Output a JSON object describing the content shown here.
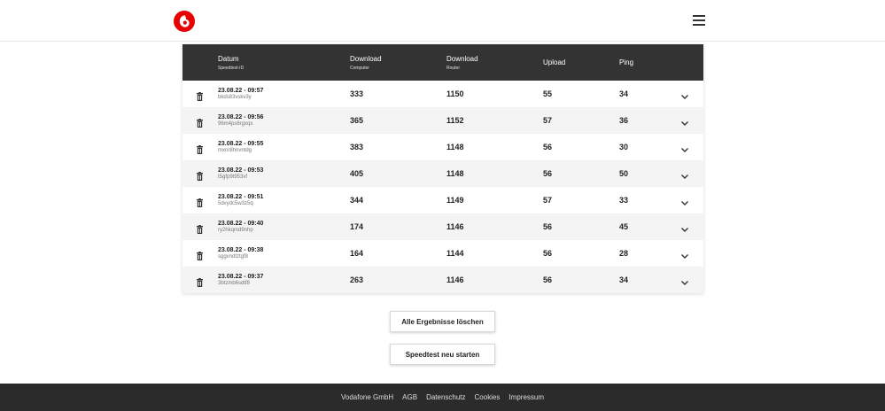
{
  "header": {
    "logo": "vodafone-logo",
    "menu_icon": "hamburger-menu-icon"
  },
  "table": {
    "headers": [
      {
        "label": "Datum",
        "sub": "Speedtest-ID"
      },
      {
        "label": "Download",
        "sub": "Computer"
      },
      {
        "label": "Download",
        "sub": "Router"
      },
      {
        "label": "Upload",
        "sub": ""
      },
      {
        "label": "Ping",
        "sub": ""
      }
    ],
    "rows": [
      {
        "date": "23.08.22",
        "time": " - 09:57",
        "id": "bkds83vskv3y",
        "dl_computer": "333",
        "dl_router": "1150",
        "upload": "55",
        "ping": "34"
      },
      {
        "date": "23.08.22",
        "time": " - 09:56",
        "id": "96m4ps6rgxqx",
        "dl_computer": "365",
        "dl_router": "1152",
        "upload": "57",
        "ping": "36"
      },
      {
        "date": "23.08.22",
        "time": " - 09:55",
        "id": "mxnr8hnvntdg",
        "dl_computer": "383",
        "dl_router": "1148",
        "upload": "56",
        "ping": "30"
      },
      {
        "date": "23.08.22",
        "time": " - 09:53",
        "id": "t5gfp9t953vf",
        "dl_computer": "405",
        "dl_router": "1148",
        "upload": "56",
        "ping": "50"
      },
      {
        "date": "23.08.22",
        "time": " - 09:51",
        "id": "5dvydc5w3z5q",
        "dl_computer": "344",
        "dl_router": "1149",
        "upload": "57",
        "ping": "33"
      },
      {
        "date": "23.08.22",
        "time": " - 09:40",
        "id": "ry2hkqmd9nhp",
        "dl_computer": "174",
        "dl_router": "1146",
        "upload": "56",
        "ping": "45"
      },
      {
        "date": "23.08.22",
        "time": " - 09:38",
        "id": "sggvndtztgf8",
        "dl_computer": "164",
        "dl_router": "1144",
        "upload": "56",
        "ping": "28"
      },
      {
        "date": "23.08.22",
        "time": " - 09:37",
        "id": "3btzmb6sdtf8",
        "dl_computer": "263",
        "dl_router": "1146",
        "upload": "56",
        "ping": "34"
      }
    ]
  },
  "actions": {
    "delete_all": "Alle Ergebnisse löschen",
    "restart": "Speedtest neu starten"
  },
  "footer": {
    "links": [
      "Vodafone GmbH",
      "AGB",
      "Datenschutz",
      "Cookies",
      "Impressum"
    ]
  },
  "colors": {
    "brand": "#e60000",
    "header_bg": "#333333",
    "footer_bg": "#2b2b2b"
  }
}
